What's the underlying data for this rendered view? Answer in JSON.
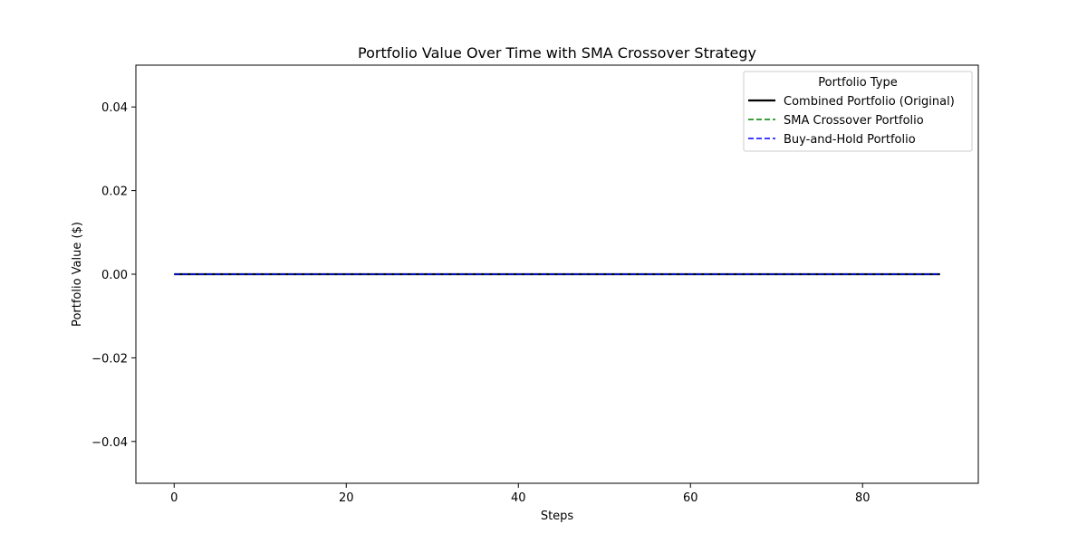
{
  "chart_data": {
    "type": "line",
    "title": "Portfolio Value Over Time with SMA Crossover Strategy",
    "xlabel": "Steps",
    "ylabel": "Portfolio Value ($)",
    "xlim": [
      -4.45,
      93.45
    ],
    "ylim": [
      -0.05,
      0.05
    ],
    "x_ticks": [
      0,
      20,
      40,
      60,
      80
    ],
    "y_ticks": [
      -0.04,
      -0.02,
      0.0,
      0.02,
      0.04
    ],
    "x_tick_labels": [
      "0",
      "20",
      "40",
      "60",
      "80"
    ],
    "y_tick_labels": [
      "−0.04",
      "−0.02",
      "0.00",
      "0.02",
      "0.04"
    ],
    "x_start": 0,
    "x_end": 89,
    "grid": false,
    "legend": {
      "title": "Portfolio Type",
      "placement": "top-right"
    },
    "series": [
      {
        "name": "Combined Portfolio (Original)",
        "color": "#000000",
        "style": "solid",
        "constant_value": 0
      },
      {
        "name": "SMA Crossover Portfolio",
        "color": "#008000",
        "style": "dashed",
        "constant_value": 0
      },
      {
        "name": "Buy-and-Hold Portfolio",
        "color": "#0000ff",
        "style": "dashed",
        "constant_value": 0
      }
    ]
  }
}
